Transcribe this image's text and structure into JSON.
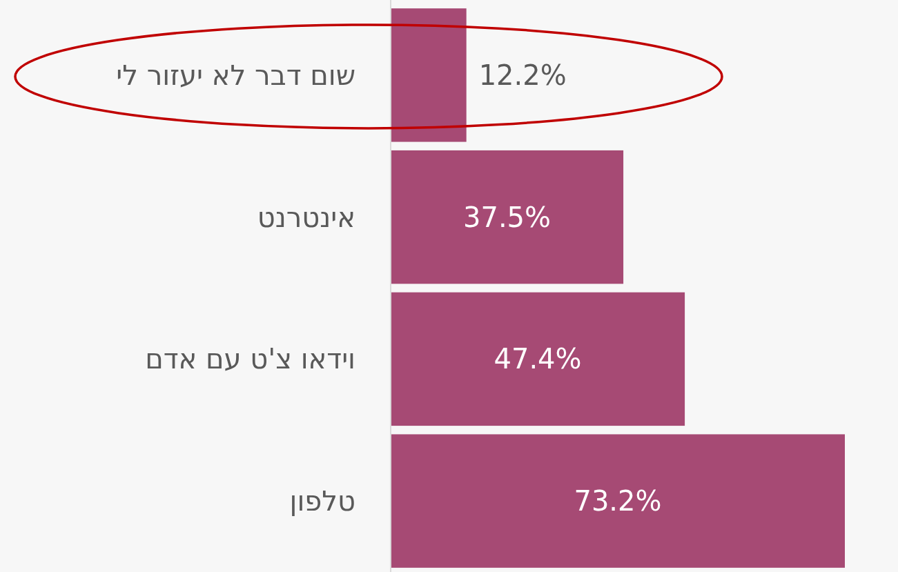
{
  "chart_data": {
    "type": "bar",
    "orientation": "horizontal",
    "categories": [
      "שום דבר לא יעזור לי",
      "אינטרנט",
      "וידאו צ'ט עם אדם",
      "טלפון"
    ],
    "values": [
      12.2,
      37.5,
      47.4,
      73.2
    ],
    "color": "#a64a74",
    "value_labels": [
      "12.2%",
      "37.5%",
      "47.4%",
      "73.2%"
    ]
  }
}
